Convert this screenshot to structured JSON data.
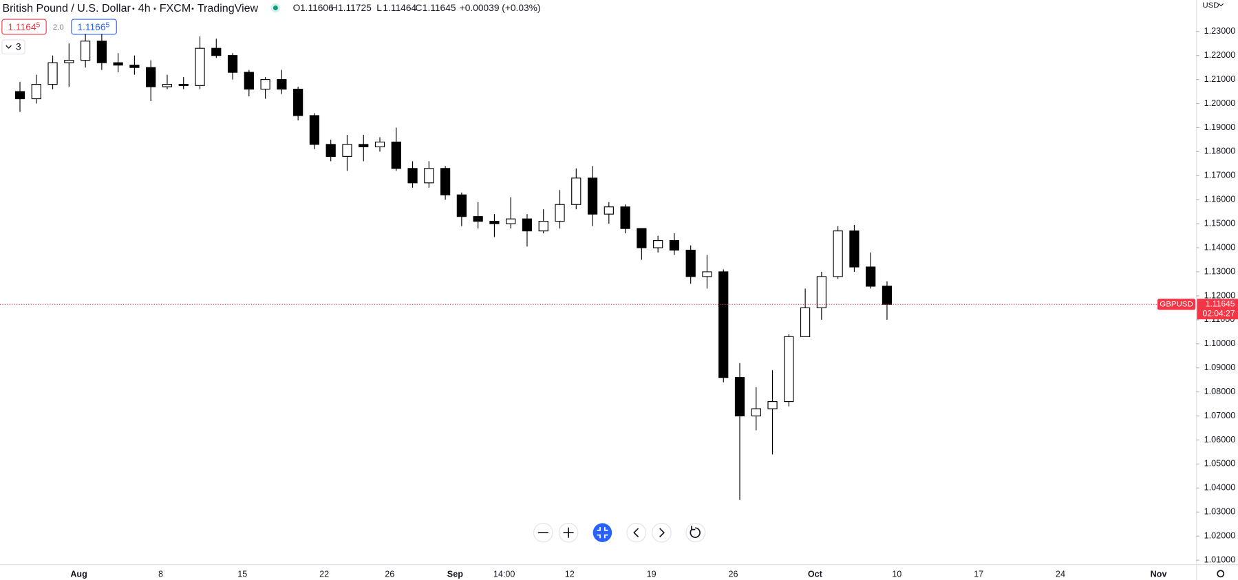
{
  "header": {
    "symbol": "British Pound / U.S. Dollar",
    "interval": "4h",
    "exchange": "FXCM",
    "source": "TradingView",
    "o_label": "O",
    "o_value": "1.11606",
    "h_label": "H",
    "h_value": "1.11725",
    "l_label": "L",
    "l_value": "1.11464",
    "c_label": "C",
    "c_value": "1.11645",
    "change": "+0.00039 (+0.03%)"
  },
  "quote": {
    "sell": "1.1164",
    "sell_pip": "5",
    "spread": "2.0",
    "buy": "1.1166",
    "buy_pip": "5",
    "indicators": "3"
  },
  "currency": "USD",
  "chart_data": {
    "type": "candlestick",
    "categories": [
      null,
      null,
      null,
      null,
      "Aug",
      null,
      null,
      null,
      null,
      "8",
      null,
      null,
      null,
      null,
      "15",
      null,
      null,
      null,
      null,
      "22",
      null,
      null,
      null,
      "26",
      null,
      null,
      null,
      "Sep",
      null,
      null,
      "14:00",
      null,
      null,
      null,
      "12",
      null,
      null,
      null,
      null,
      "19",
      null,
      null,
      null,
      null,
      "26",
      null,
      null,
      null,
      null,
      "Oct",
      null,
      null,
      null,
      null,
      "10",
      null,
      null,
      null,
      null,
      "17",
      null,
      null,
      null,
      null,
      "24",
      null,
      null,
      null,
      null,
      null,
      "Nov",
      null,
      null
    ],
    "series": [
      {
        "name": "GBPUSD",
        "color": "#000000",
        "open": [
          1.205,
          1.202,
          1.208,
          1.217,
          1.218,
          1.226,
          1.217,
          1.216,
          1.215,
          1.207,
          1.208,
          1.2075,
          1.223,
          1.22,
          1.213,
          1.206,
          1.21,
          1.206,
          1.195,
          1.183,
          1.178,
          1.183,
          1.182,
          1.184,
          1.173,
          1.167,
          1.173,
          1.162,
          1.153,
          1.151,
          1.15,
          1.152,
          1.147,
          1.151,
          1.158,
          1.169,
          1.154,
          1.157,
          1.148,
          1.14,
          1.143,
          1.139,
          1.128,
          1.13,
          1.086,
          1.07,
          1.073,
          1.076,
          1.103,
          1.115,
          1.128,
          1.147,
          1.132,
          1.124,
          null,
          null,
          null,
          null,
          null,
          null,
          null,
          null,
          null,
          null,
          null,
          null,
          null,
          null,
          null,
          null,
          null,
          null,
          null
        ],
        "high": [
          1.209,
          1.212,
          1.22,
          1.225,
          1.229,
          1.229,
          1.221,
          1.22,
          1.218,
          1.212,
          1.211,
          1.228,
          1.227,
          1.221,
          1.214,
          1.211,
          1.214,
          1.207,
          1.196,
          1.185,
          1.187,
          1.187,
          1.186,
          1.19,
          1.176,
          1.176,
          1.174,
          1.163,
          1.159,
          1.154,
          1.161,
          1.154,
          1.156,
          1.164,
          1.173,
          1.174,
          1.159,
          1.158,
          1.148,
          1.145,
          1.146,
          1.141,
          1.137,
          1.131,
          1.092,
          1.082,
          1.089,
          1.104,
          1.123,
          1.13,
          1.149,
          1.1495,
          1.138,
          1.126,
          null,
          null,
          null,
          null,
          null,
          null,
          null,
          null,
          null,
          null,
          null,
          null,
          null,
          null,
          null,
          null,
          null,
          null,
          null
        ],
        "low": [
          1.1965,
          1.2,
          1.206,
          1.207,
          1.215,
          1.214,
          1.213,
          1.212,
          1.201,
          1.206,
          1.206,
          1.206,
          1.219,
          1.21,
          1.203,
          1.202,
          1.204,
          1.193,
          1.181,
          1.176,
          1.172,
          1.176,
          1.18,
          1.172,
          1.165,
          1.165,
          1.16,
          1.149,
          1.148,
          1.1445,
          1.148,
          1.1405,
          1.146,
          1.148,
          1.156,
          1.149,
          1.15,
          1.146,
          1.135,
          1.138,
          1.137,
          1.125,
          1.123,
          1.084,
          1.035,
          1.064,
          1.054,
          1.074,
          1.103,
          1.11,
          1.127,
          1.13,
          1.123,
          1.11,
          null,
          null,
          null,
          null,
          null,
          null,
          null,
          null,
          null,
          null,
          null,
          null,
          null,
          null,
          null,
          null,
          null,
          null,
          null
        ],
        "close": [
          1.202,
          1.208,
          1.217,
          1.218,
          1.226,
          1.217,
          1.216,
          1.215,
          1.207,
          1.208,
          1.2075,
          1.223,
          1.22,
          1.213,
          1.206,
          1.21,
          1.206,
          1.195,
          1.183,
          1.178,
          1.183,
          1.182,
          1.184,
          1.173,
          1.167,
          1.173,
          1.162,
          1.153,
          1.151,
          1.15,
          1.152,
          1.147,
          1.151,
          1.158,
          1.169,
          1.154,
          1.157,
          1.148,
          1.14,
          1.143,
          1.139,
          1.128,
          1.13,
          1.086,
          1.07,
          1.073,
          1.076,
          1.103,
          1.115,
          1.128,
          1.147,
          1.132,
          1.124,
          1.11645,
          null,
          null,
          null,
          null,
          null,
          null,
          null,
          null,
          null,
          null,
          null,
          null,
          null,
          null,
          null,
          null,
          null,
          null,
          null
        ]
      }
    ],
    "last_price": 1.11645,
    "last_price_color": "#f23645",
    "countdown": "02:04:27",
    "ylim": [
      1.0083,
      1.2431
    ],
    "yticks": [
      {
        "value": 1.01,
        "label": "1.01000"
      },
      {
        "value": 1.02,
        "label": "1.02000"
      },
      {
        "value": 1.03,
        "label": "1.03000"
      },
      {
        "value": 1.04,
        "label": "1.04000"
      },
      {
        "value": 1.05,
        "label": "1.05000"
      },
      {
        "value": 1.06,
        "label": "1.06000"
      },
      {
        "value": 1.07,
        "label": "1.07000"
      },
      {
        "value": 1.08,
        "label": "1.08000"
      },
      {
        "value": 1.09,
        "label": "1.09000"
      },
      {
        "value": 1.1,
        "label": "1.10000"
      },
      {
        "value": 1.11,
        "label": "1.11000"
      },
      {
        "value": 1.12,
        "label": "1.12000"
      },
      {
        "value": 1.13,
        "label": "1.13000"
      },
      {
        "value": 1.14,
        "label": "1.14000"
      },
      {
        "value": 1.15,
        "label": "1.15000"
      },
      {
        "value": 1.16,
        "label": "1.16000"
      },
      {
        "value": 1.17,
        "label": "1.17000"
      },
      {
        "value": 1.18,
        "label": "1.18000"
      },
      {
        "value": 1.19,
        "label": "1.19000"
      },
      {
        "value": 1.2,
        "label": "1.20000"
      },
      {
        "value": 1.21,
        "label": "1.21000"
      },
      {
        "value": 1.22,
        "label": "1.22000"
      },
      {
        "value": 1.23,
        "label": "1.23000"
      }
    ],
    "grid": false
  }
}
